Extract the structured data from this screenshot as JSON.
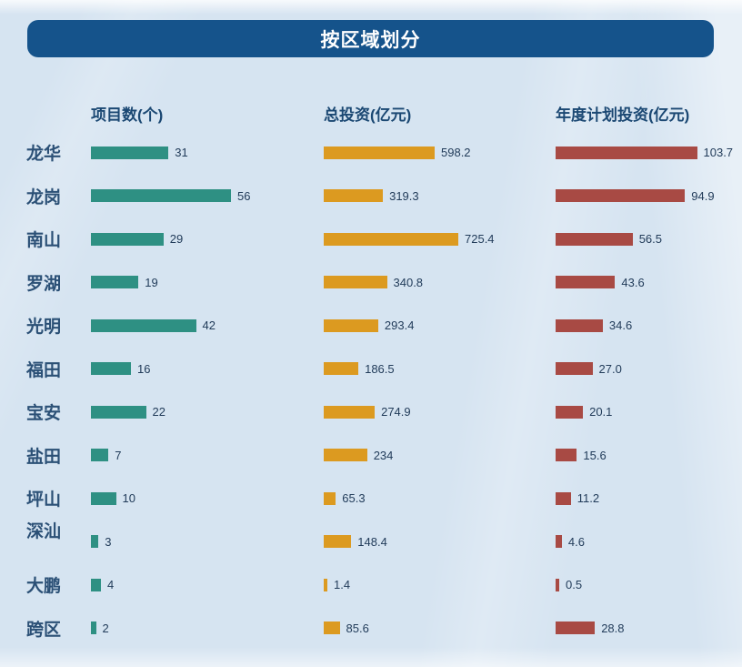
{
  "title": "按区域划分",
  "colors": {
    "title_bar_bg": "#15538b",
    "title_text": "#ffffff",
    "column_header_text": "#1b4873",
    "region_label_text": "#2b5076",
    "value_text": "#223c5a",
    "background": "#d6e4f1",
    "series_projects": "#2e9083",
    "series_total_investment": "#dc9a20",
    "series_annual_investment": "#a84a44"
  },
  "chart_data": {
    "type": "bar",
    "orientation": "horizontal",
    "title": "按区域划分",
    "grid": false,
    "legend_position": "column-headers-top",
    "categories": [
      "龙华",
      "龙岗",
      "南山",
      "罗湖",
      "光明",
      "福田",
      "宝安",
      "盐田",
      "坪山",
      "深汕",
      "大鹏",
      "跨区"
    ],
    "series": [
      {
        "name": "项目数(个)",
        "color": "#2e9083",
        "axis_max": 56,
        "values": [
          31,
          56,
          29,
          19,
          42,
          16,
          22,
          7,
          10,
          3,
          4,
          2
        ],
        "labels": [
          "31",
          "56",
          "29",
          "19",
          "42",
          "16",
          "22",
          "7",
          "10",
          "3",
          "4",
          "2"
        ]
      },
      {
        "name": "总投资(亿元)",
        "color": "#dc9a20",
        "axis_max": 725.4,
        "values": [
          598.2,
          319.3,
          725.4,
          340.8,
          293.4,
          186.5,
          274.9,
          234,
          65.3,
          148.4,
          1.4,
          85.6
        ],
        "labels": [
          "598.2",
          "319.3",
          "725.4",
          "340.8",
          "293.4",
          "186.5",
          "274.9",
          "234",
          "65.3",
          "148.4",
          "1.4",
          "85.6"
        ]
      },
      {
        "name": "年度计划投资(亿元)",
        "color": "#a84a44",
        "axis_max": 103.7,
        "values": [
          103.7,
          94.9,
          56.5,
          43.6,
          34.6,
          27.0,
          20.1,
          15.6,
          11.2,
          4.6,
          0.5,
          28.8
        ],
        "labels": [
          "103.7",
          "94.9",
          "56.5",
          "43.6",
          "34.6",
          "27.0",
          "20.1",
          "15.6",
          "11.2",
          "4.6",
          "0.5",
          "28.8"
        ]
      }
    ]
  }
}
